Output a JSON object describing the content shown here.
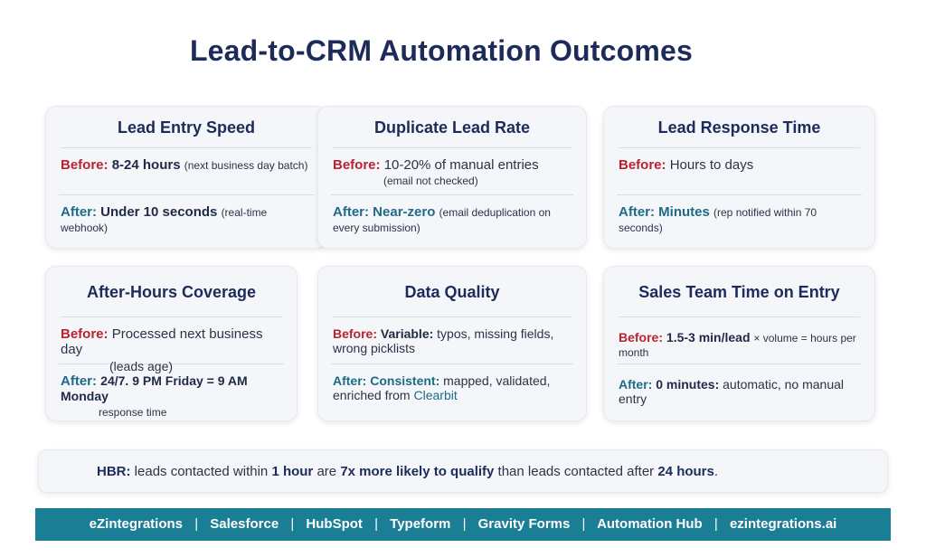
{
  "title": "Lead-to-CRM Automation Outcomes",
  "colors": {
    "before": "#b8232f",
    "after": "#1d6b86",
    "title": "#1c2b59",
    "footer_bg": "#1a7f94"
  },
  "cards": {
    "entry": {
      "title": "Lead Entry Speed",
      "before_label": "Before:",
      "before_value": "8-24 hours",
      "before_note": "(next business day batch)",
      "after_label": "After:",
      "after_value": "Under 10 seconds",
      "after_note": "(real-time webhook)"
    },
    "duplicate": {
      "title": "Duplicate Lead Rate",
      "before_label": "Before:",
      "before_value": "10-20% of manual entries",
      "before_note": "(email not checked)",
      "after_label": "After:",
      "after_value": "Near-zero",
      "after_note": "(email deduplication on every submission)"
    },
    "response": {
      "title": "Lead Response Time",
      "before_label": "Before:",
      "before_value": "Hours to days",
      "after_label": "After:",
      "after_value": "Minutes",
      "after_note": "(rep notified within 70 seconds)"
    },
    "afterhours": {
      "title": "After-Hours Coverage",
      "before_label": "Before:",
      "before_value": "Processed next business day",
      "before_note": "(leads age)",
      "after_label": "After:",
      "after_value": "24/7. 9 PM Friday = 9 AM Monday",
      "after_note": "response time"
    },
    "quality": {
      "title": "Data Quality",
      "before_label": "Before:",
      "before_value_bold": "Variable:",
      "before_value": "typos, missing fields, wrong picklists",
      "after_label": "After:",
      "after_value_bold": "Consistent:",
      "after_value": "mapped, validated, enriched from",
      "after_link": "Clearbit"
    },
    "salesteam": {
      "title": "Sales Team Time on Entry",
      "before_label": "Before:",
      "before_value": "1.5-3 min/lead",
      "before_note": "× volume = hours per month",
      "after_label": "After:",
      "after_value": "0 minutes:",
      "after_note": "automatic, no manual entry"
    }
  },
  "hbr": {
    "source": "HBR:",
    "t1": "leads contacted within",
    "b1": "1 hour",
    "t2": "are",
    "b2": "7x more likely to qualify",
    "t3": "than leads contacted after",
    "b3": "24 hours",
    "t4": "."
  },
  "footer": {
    "items": [
      "eZintegrations",
      "Salesforce",
      "HubSpot",
      "Typeform",
      "Gravity Forms",
      "Automation Hub",
      "ezintegrations.ai"
    ],
    "separator": "|"
  }
}
